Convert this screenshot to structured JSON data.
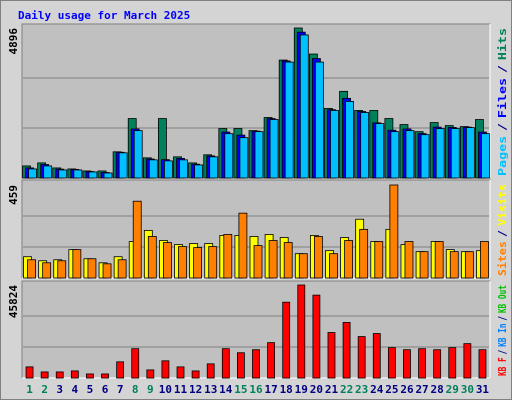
{
  "chart_data": {
    "type": "bar",
    "title": "Daily usage for March 2025",
    "title_color": "#0000ff",
    "categories": [
      "1",
      "2",
      "3",
      "4",
      "5",
      "6",
      "7",
      "8",
      "9",
      "10",
      "11",
      "12",
      "13",
      "14",
      "15",
      "16",
      "17",
      "18",
      "19",
      "20",
      "21",
      "22",
      "23",
      "24",
      "25",
      "26",
      "27",
      "28",
      "29",
      "30",
      "31"
    ],
    "category_colors": [
      "#00805c",
      "#00805c",
      "#000080",
      "#000080",
      "#000080",
      "#000080",
      "#000080",
      "#00805c",
      "#00805c",
      "#000080",
      "#000080",
      "#000080",
      "#000080",
      "#000080",
      "#00805c",
      "#00805c",
      "#000080",
      "#000080",
      "#000080",
      "#000080",
      "#000080",
      "#00805c",
      "#00805c",
      "#000080",
      "#000080",
      "#000080",
      "#000080",
      "#000080",
      "#00805c",
      "#00805c",
      "#000080"
    ],
    "separator": "/",
    "panels": [
      {
        "ylim": [
          0,
          4896
        ],
        "yticks": [
          4896
        ],
        "series": [
          {
            "name": "Pages",
            "color": "#00c0ff",
            "values": [
              296,
              394,
              263,
              263,
              197,
              164,
              822,
              1546,
              592,
              559,
              592,
              427,
              691,
              1447,
              1316,
              1513,
              1908,
              3783,
              4670,
              3783,
              2204,
              2500,
              2138,
              1776,
              1513,
              1546,
              1414,
              1612,
              1612,
              1645,
              1447
            ]
          },
          {
            "name": "Files",
            "color": "#0000ff",
            "values": [
              330,
              440,
              290,
              280,
              210,
              180,
              840,
              1600,
              620,
              600,
              640,
              450,
              720,
              1500,
              1400,
              1530,
              1940,
              3820,
              4760,
              3900,
              2230,
              2600,
              2170,
              1800,
              1560,
              1600,
              1450,
              1660,
              1650,
              1660,
              1500
            ]
          },
          {
            "name": "Hits",
            "color": "#00805c",
            "values": [
              394,
              493,
              329,
              296,
              230,
              230,
              855,
              1941,
              658,
              1941,
              691,
              493,
              757,
              1612,
              1612,
              1546,
              1974,
              3849,
              4896,
              4046,
              2270,
              2829,
              2204,
              2204,
              1941,
              1744,
              1513,
              1809,
              1711,
              1678,
              1908
            ]
          }
        ]
      },
      {
        "ylim": [
          0,
          459
        ],
        "yticks": [
          459
        ],
        "series": [
          {
            "name": "Sites",
            "color": "#ff8000",
            "values": [
              90,
              75,
              85,
              140,
              95,
              70,
              90,
              379,
              205,
              175,
              155,
              150,
              155,
              215,
              320,
              160,
              185,
              175,
              120,
              205,
              120,
              185,
              240,
              180,
              459,
              180,
              130,
              180,
              130,
              130,
              180
            ]
          },
          {
            "name": "Visits",
            "color": "#ffff00",
            "values": [
              105,
              85,
              90,
              140,
              95,
              75,
              105,
              180,
              235,
              185,
              165,
              170,
              170,
              210,
              210,
              205,
              215,
              200,
              120,
              210,
              135,
              200,
              290,
              180,
              240,
              165,
              130,
              180,
              140,
              130,
              135
            ]
          }
        ]
      },
      {
        "ylim": [
          0,
          45824
        ],
        "yticks": [
          45824
        ],
        "series": [
          {
            "name": "KB F",
            "color": "#ff0000",
            "values": [
              5478,
              2988,
              2988,
              3486,
              1992,
              1992,
              7968,
              14442,
              3984,
              8466,
              5478,
              3486,
              6972,
              14442,
              12450,
              13944,
              17430,
              37350,
              45824,
              40836,
              22410,
              27390,
              20418,
              21912,
              14940,
              13944,
              14442,
              13944,
              14940,
              16932,
              13944
            ]
          },
          {
            "name": "KB In",
            "color": "#0080ff"
          },
          {
            "name": "KB Out",
            "color": "#00c000"
          }
        ]
      }
    ]
  }
}
